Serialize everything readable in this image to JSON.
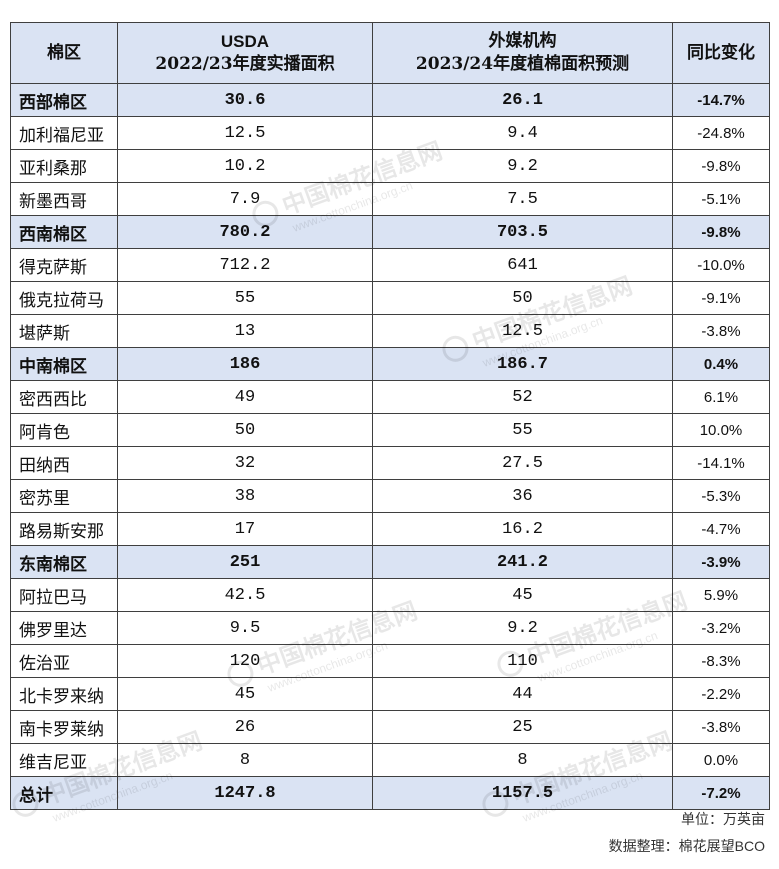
{
  "chart_data": {
    "type": "table",
    "columns": [
      [
        "棉区"
      ],
      [
        "USDA",
        "2022/23年度实播面积"
      ],
      [
        "外媒机构",
        "2023/24年度植棉面积预测"
      ],
      [
        "同比变化"
      ]
    ],
    "rows": [
      {
        "name": "西部棉区",
        "usda": 30.6,
        "forecast": 26.1,
        "change": "-14.7%",
        "subtotal": true
      },
      {
        "name": "加利福尼亚",
        "usda": 12.5,
        "forecast": 9.4,
        "change": "-24.8%"
      },
      {
        "name": "亚利桑那",
        "usda": 10.2,
        "forecast": 9.2,
        "change": "-9.8%"
      },
      {
        "name": "新墨西哥",
        "usda": 7.9,
        "forecast": 7.5,
        "change": "-5.1%"
      },
      {
        "name": "西南棉区",
        "usda": 780.2,
        "forecast": 703.5,
        "change": "-9.8%",
        "subtotal": true
      },
      {
        "name": "得克萨斯",
        "usda": 712.2,
        "forecast": 641,
        "change": "-10.0%"
      },
      {
        "name": "俄克拉荷马",
        "usda": 55,
        "forecast": 50,
        "change": "-9.1%"
      },
      {
        "name": "堪萨斯",
        "usda": 13,
        "forecast": 12.5,
        "change": "-3.8%"
      },
      {
        "name": "中南棉区",
        "usda": 186,
        "forecast": 186.7,
        "change": "0.4%",
        "subtotal": true
      },
      {
        "name": "密西西比",
        "usda": 49,
        "forecast": 52,
        "change": "6.1%"
      },
      {
        "name": "阿肯色",
        "usda": 50,
        "forecast": 55,
        "change": "10.0%"
      },
      {
        "name": "田纳西",
        "usda": 32,
        "forecast": 27.5,
        "change": "-14.1%"
      },
      {
        "name": "密苏里",
        "usda": 38,
        "forecast": 36,
        "change": "-5.3%"
      },
      {
        "name": "路易斯安那",
        "usda": 17,
        "forecast": 16.2,
        "change": "-4.7%"
      },
      {
        "name": "东南棉区",
        "usda": 251,
        "forecast": 241.2,
        "change": "-3.9%",
        "subtotal": true
      },
      {
        "name": "阿拉巴马",
        "usda": 42.5,
        "forecast": 45,
        "change": "5.9%"
      },
      {
        "name": "佛罗里达",
        "usda": 9.5,
        "forecast": 9.2,
        "change": "-3.2%"
      },
      {
        "name": "佐治亚",
        "usda": 120,
        "forecast": 110,
        "change": "-8.3%"
      },
      {
        "name": "北卡罗来纳",
        "usda": 45,
        "forecast": 44,
        "change": "-2.2%"
      },
      {
        "name": "南卡罗莱纳",
        "usda": 26,
        "forecast": 25,
        "change": "-3.8%"
      },
      {
        "name": "维吉尼亚",
        "usda": 8,
        "forecast": 8,
        "change": "0.0%"
      },
      {
        "name": "总计",
        "usda": 1247.8,
        "forecast": 1157.5,
        "change": "-7.2%",
        "subtotal": true
      }
    ]
  },
  "footer": {
    "unit": "单位：万英亩",
    "source": "数据整理：棉花展望BCO"
  },
  "watermark": {
    "site": "中国棉花信息网",
    "url": "www.cottonchina.org.cn",
    "logo_icon": "cotton-logo-icon"
  },
  "colors": {
    "header_bg": "#dae3f3",
    "subtotal_bg": "#dae3f3",
    "border": "#3f3f3f",
    "text": "#111111"
  }
}
